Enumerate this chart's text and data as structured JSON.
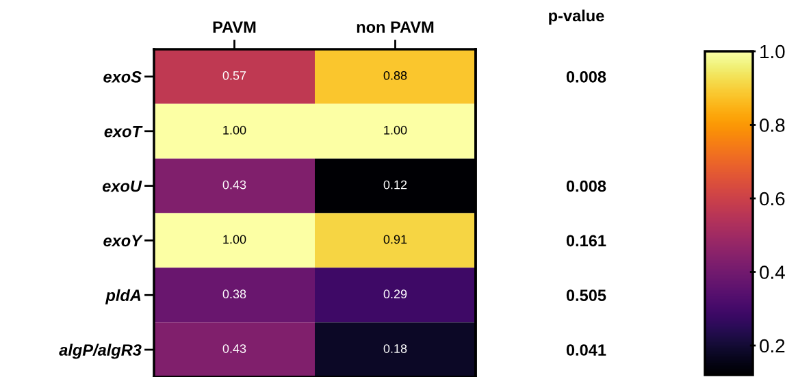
{
  "chart_data": {
    "type": "heatmap",
    "categories": [
      "PAVM",
      "non PAVM"
    ],
    "y_categories": [
      "exoS",
      "exoT",
      "exoU",
      "exoY",
      "pldA",
      "algP/algR3"
    ],
    "y2_categories": [
      "0.008",
      null,
      "0.008",
      "0.161",
      "0.505",
      "0.041"
    ],
    "y2label": "p-value",
    "cells": [
      [
        0.57,
        0.88
      ],
      [
        1.0,
        1.0
      ],
      [
        0.43,
        0.12
      ],
      [
        1.0,
        0.91
      ],
      [
        0.38,
        0.29
      ],
      [
        0.43,
        0.18
      ]
    ],
    "cell_labels": [
      [
        "0.57",
        "0.88"
      ],
      [
        "1.00",
        "1.00"
      ],
      [
        "0.43",
        "0.12"
      ],
      [
        "1.00",
        "0.91"
      ],
      [
        "0.38",
        "0.29"
      ],
      [
        "0.43",
        "0.18"
      ]
    ],
    "clim": [
      0.12,
      1.0
    ],
    "cticks": [
      0.2,
      0.4,
      0.6,
      0.8,
      {
        "value": 1.0,
        "label": "1.0"
      }
    ]
  }
}
